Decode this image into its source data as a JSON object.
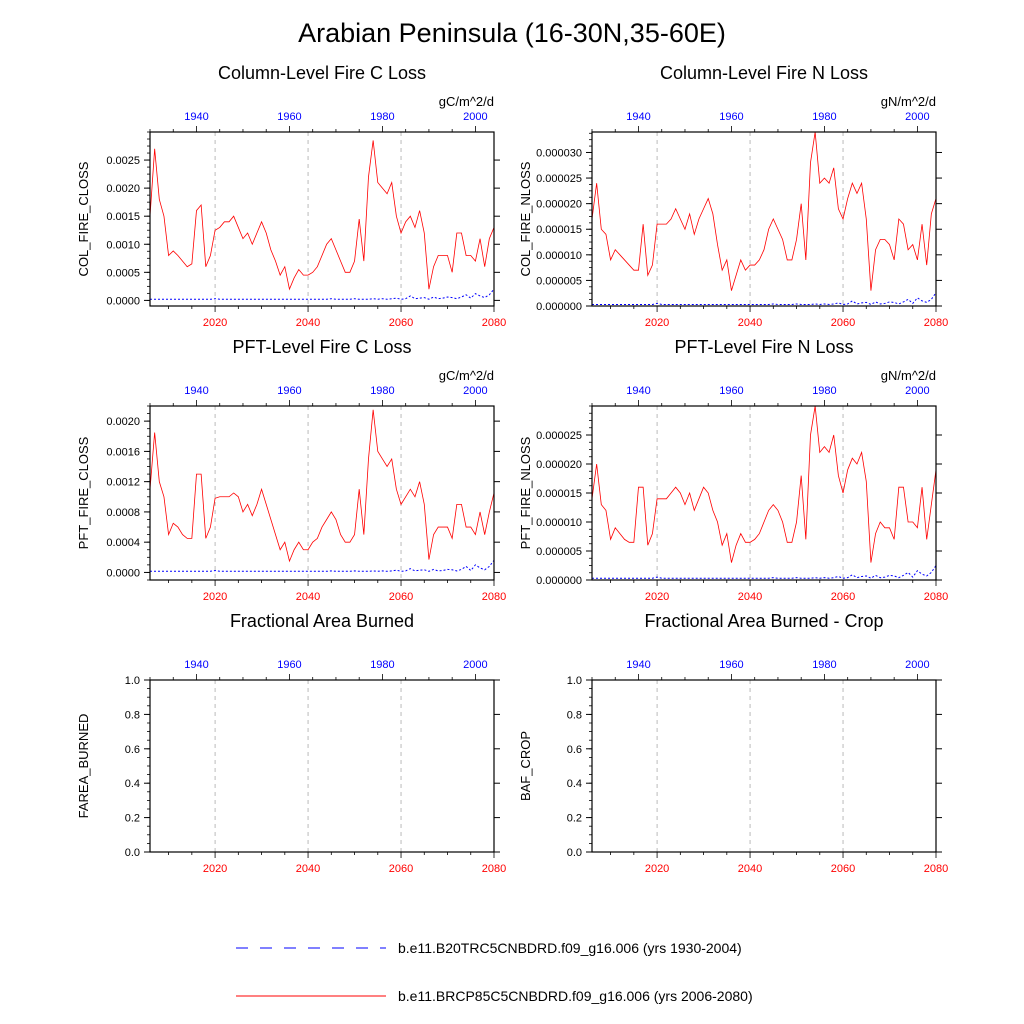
{
  "main_title": "Arabian Peninsula (16-30N,35-60E)",
  "colors": {
    "hist": "#0000ff",
    "future": "#ff0000",
    "gridline": "#aaaaaa"
  },
  "legend": {
    "hist_label": "b.e11.B20TRC5CNBDRD.f09_g16.006 (yrs 1930-2004)",
    "future_label": "b.e11.BRCP85C5CNBDRD.f09_g16.006 (yrs 2006-2080)"
  },
  "chart_data": [
    {
      "id": "col_c",
      "type": "line",
      "title": "Column-Level Fire C Loss",
      "ylabel": "COL_FIRE_CLOSS",
      "units": "gC/m^2/d",
      "ylim": [
        -0.0001,
        0.003
      ],
      "yticks": [
        "0.0000",
        "0.0005",
        "0.0010",
        "0.0015",
        "0.0020",
        "0.0025"
      ],
      "ytick_values": [
        0,
        0.0005,
        0.001,
        0.0015,
        0.002,
        0.0025
      ],
      "xlim_future": [
        2006,
        2080
      ],
      "xticks_future": [
        "2020",
        "2040",
        "2060",
        "2080"
      ],
      "xlim_hist": [
        1930,
        2004
      ],
      "xticks_hist": [
        "1940",
        "1960",
        "1980",
        "2000"
      ],
      "series": [
        {
          "name": "b.e11.BRCP85C5CNBDRD.f09_g16.006 (yrs 2006-2080)",
          "years_start": 2006,
          "values": [
            0.0015,
            0.0027,
            0.0018,
            0.0015,
            0.0008,
            0.00088,
            0.0008,
            0.0007,
            0.0006,
            0.00065,
            0.0016,
            0.0017,
            0.0006,
            0.0008,
            0.00125,
            0.0013,
            0.0014,
            0.0014,
            0.0015,
            0.0013,
            0.0011,
            0.0012,
            0.001,
            0.0012,
            0.0014,
            0.0012,
            0.0009,
            0.0007,
            0.00045,
            0.0006,
            0.0002,
            0.0004,
            0.00055,
            0.00045,
            0.00045,
            0.0005,
            0.0006,
            0.0008,
            0.001,
            0.0011,
            0.0009,
            0.0007,
            0.0005,
            0.0005,
            0.0007,
            0.00145,
            0.0007,
            0.0022,
            0.00285,
            0.0021,
            0.002,
            0.0019,
            0.0021,
            0.0015,
            0.0012,
            0.0014,
            0.0015,
            0.0013,
            0.0016,
            0.0012,
            0.0002,
            0.0006,
            0.0008,
            0.0008,
            0.0008,
            0.0005,
            0.0012,
            0.0012,
            0.0008,
            0.0008,
            0.0007,
            0.0011,
            0.0006,
            0.0011,
            0.0013
          ]
        },
        {
          "name": "b.e11.B20TRC5CNBDRD.f09_g16.006 (yrs 1930-2004)",
          "years_start": 1930,
          "values": [
            2e-05,
            2e-05,
            2e-05,
            2e-05,
            2e-05,
            2e-05,
            2e-05,
            2e-05,
            2e-05,
            2e-05,
            2e-05,
            2e-05,
            2e-05,
            2e-05,
            3e-05,
            2e-05,
            2e-05,
            2e-05,
            2e-05,
            2e-05,
            2e-05,
            2e-05,
            2e-05,
            2e-05,
            2e-05,
            2e-05,
            2e-05,
            2e-05,
            2e-05,
            2e-05,
            2e-05,
            2e-05,
            2e-05,
            2e-05,
            2e-05,
            2e-05,
            2e-05,
            2e-05,
            2e-05,
            3e-05,
            2e-05,
            2e-05,
            2e-05,
            2e-05,
            3e-05,
            2e-05,
            2e-05,
            2e-05,
            3e-05,
            2e-05,
            3e-05,
            2e-05,
            3e-05,
            4e-05,
            2e-05,
            3e-05,
            8e-05,
            3e-05,
            4e-05,
            5e-05,
            2e-05,
            6e-05,
            3e-05,
            4e-05,
            6e-05,
            5e-05,
            3e-05,
            6e-05,
            0.0001,
            4e-05,
            0.00012,
            8e-05,
            5e-05,
            0.0001,
            0.0002
          ]
        }
      ]
    },
    {
      "id": "col_n",
      "type": "line",
      "title": "Column-Level Fire N Loss",
      "ylabel": "COL_FIRE_NLOSS",
      "units": "gN/m^2/d",
      "ylim": [
        0,
        3.4e-05
      ],
      "yticks": [
        "0.000000",
        "0.000005",
        "0.000010",
        "0.000015",
        "0.000020",
        "0.000025",
        "0.000030"
      ],
      "ytick_values": [
        0,
        5e-06,
        1e-05,
        1.5e-05,
        2e-05,
        2.5e-05,
        3e-05
      ],
      "xlim_future": [
        2006,
        2080
      ],
      "xticks_future": [
        "2020",
        "2040",
        "2060",
        "2080"
      ],
      "xlim_hist": [
        1930,
        2004
      ],
      "xticks_hist": [
        "1940",
        "1960",
        "1980",
        "2000"
      ],
      "series": [
        {
          "name": "b.e11.BRCP85C5CNBDRD.f09_g16.006 (yrs 2006-2080)",
          "years_start": 2006,
          "values": [
            1.7e-05,
            2.4e-05,
            1.5e-05,
            1.4e-05,
            9e-06,
            1.1e-05,
            1e-05,
            9e-06,
            8e-06,
            7e-06,
            7e-06,
            1.6e-05,
            6e-06,
            8e-06,
            1.6e-05,
            1.6e-05,
            1.6e-05,
            1.7e-05,
            1.9e-05,
            1.7e-05,
            1.5e-05,
            1.8e-05,
            1.4e-05,
            1.7e-05,
            1.9e-05,
            2.1e-05,
            1.8e-05,
            1.2e-05,
            7e-06,
            9e-06,
            3e-06,
            6e-06,
            9e-06,
            7e-06,
            8e-06,
            8e-06,
            9e-06,
            1.1e-05,
            1.5e-05,
            1.7e-05,
            1.5e-05,
            1.3e-05,
            9e-06,
            9e-06,
            1.3e-05,
            2e-05,
            9e-06,
            2.8e-05,
            3.4e-05,
            2.4e-05,
            2.5e-05,
            2.4e-05,
            2.7e-05,
            1.9e-05,
            1.7e-05,
            2.1e-05,
            2.4e-05,
            2.2e-05,
            2.4e-05,
            1.7e-05,
            3e-06,
            1.1e-05,
            1.3e-05,
            1.3e-05,
            1.2e-05,
            9e-06,
            1.7e-05,
            1.6e-05,
            1.1e-05,
            1.2e-05,
            9e-06,
            1.6e-05,
            8e-06,
            1.8e-05,
            2.1e-05
          ]
        },
        {
          "name": "b.e11.B20TRC5CNBDRD.f09_g16.006 (yrs 1930-2004)",
          "years_start": 1930,
          "values": [
            3e-07,
            3e-07,
            3e-07,
            3e-07,
            3e-07,
            3e-07,
            3e-07,
            3e-07,
            3e-07,
            3e-07,
            3e-07,
            3e-07,
            3e-07,
            3e-07,
            5e-07,
            3e-07,
            3e-07,
            3e-07,
            3e-07,
            3e-07,
            3e-07,
            3e-07,
            3e-07,
            3e-07,
            3e-07,
            3e-07,
            3e-07,
            3e-07,
            3e-07,
            3e-07,
            3e-07,
            3e-07,
            3e-07,
            3e-07,
            3e-07,
            3e-07,
            3e-07,
            3e-07,
            3e-07,
            4e-07,
            3e-07,
            3e-07,
            3e-07,
            3e-07,
            4e-07,
            3e-07,
            3e-07,
            3e-07,
            4e-07,
            3e-07,
            4e-07,
            3e-07,
            4e-07,
            6e-07,
            3e-07,
            4e-07,
            1e-06,
            4e-07,
            6e-07,
            7e-07,
            3e-07,
            8e-07,
            4e-07,
            5e-07,
            8e-07,
            7e-07,
            4e-07,
            8e-07,
            1.3e-06,
            5e-07,
            1.6e-06,
            1e-06,
            7e-07,
            1.3e-06,
            2.6e-06
          ]
        }
      ]
    },
    {
      "id": "pft_c",
      "type": "line",
      "title": "PFT-Level Fire C Loss",
      "ylabel": "PFT_FIRE_CLOSS",
      "units": "gC/m^2/d",
      "ylim": [
        -0.0001,
        0.0022
      ],
      "yticks": [
        "0.0000",
        "0.0004",
        "0.0008",
        "0.0012",
        "0.0016",
        "0.0020"
      ],
      "ytick_values": [
        0,
        0.0004,
        0.0008,
        0.0012,
        0.0016,
        0.002
      ],
      "xlim_future": [
        2006,
        2080
      ],
      "xticks_future": [
        "2020",
        "2040",
        "2060",
        "2080"
      ],
      "xlim_hist": [
        1930,
        2004
      ],
      "xticks_hist": [
        "1940",
        "1960",
        "1980",
        "2000"
      ],
      "series": [
        {
          "name": "b.e11.BRCP85C5CNBDRD.f09_g16.006 (yrs 2006-2080)",
          "years_start": 2006,
          "values": [
            0.0011,
            0.00185,
            0.0012,
            0.001,
            0.0005,
            0.00065,
            0.0006,
            0.0005,
            0.00045,
            0.00045,
            0.0013,
            0.0013,
            0.00045,
            0.0006,
            0.00098,
            0.001,
            0.001,
            0.001,
            0.00105,
            0.001,
            0.0008,
            0.0009,
            0.00075,
            0.0009,
            0.0011,
            0.0009,
            0.0007,
            0.0005,
            0.0003,
            0.0004,
            0.00015,
            0.0003,
            0.0004,
            0.0003,
            0.0003,
            0.0004,
            0.00045,
            0.0006,
            0.0007,
            0.0008,
            0.0007,
            0.0005,
            0.0004,
            0.0004,
            0.0005,
            0.0011,
            0.0005,
            0.0015,
            0.00215,
            0.0016,
            0.0015,
            0.0014,
            0.0015,
            0.0011,
            0.0009,
            0.001,
            0.0011,
            0.001,
            0.0012,
            0.0009,
            0.00017,
            0.0005,
            0.0006,
            0.0006,
            0.0006,
            0.00045,
            0.0009,
            0.0009,
            0.0006,
            0.0006,
            0.0005,
            0.0008,
            0.0005,
            0.0008,
            0.00105
          ]
        },
        {
          "name": "b.e11.B20TRC5CNBDRD.f09_g16.006 (yrs 1930-2004)",
          "years_start": 1930,
          "values": [
            1.5e-05,
            1.5e-05,
            1.5e-05,
            1.5e-05,
            1.5e-05,
            1.5e-05,
            1.5e-05,
            1.5e-05,
            1.5e-05,
            1.5e-05,
            1.5e-05,
            1.5e-05,
            1.5e-05,
            1.5e-05,
            2.5e-05,
            1.5e-05,
            1.5e-05,
            1.5e-05,
            1.5e-05,
            1.5e-05,
            1.5e-05,
            1.5e-05,
            1.5e-05,
            1.5e-05,
            1.5e-05,
            1.5e-05,
            1.5e-05,
            1.5e-05,
            1.5e-05,
            1.5e-05,
            1.5e-05,
            1.5e-05,
            1.5e-05,
            1.5e-05,
            1.5e-05,
            1.5e-05,
            1.5e-05,
            1.5e-05,
            1.5e-05,
            2e-05,
            1.5e-05,
            1.5e-05,
            1.5e-05,
            1.5e-05,
            2e-05,
            1.5e-05,
            1.5e-05,
            1.5e-05,
            2e-05,
            1.5e-05,
            2e-05,
            1.5e-05,
            2e-05,
            3e-05,
            1.5e-05,
            2e-05,
            5e-05,
            2e-05,
            3e-05,
            3.5e-05,
            1.5e-05,
            4e-05,
            2e-05,
            2.5e-05,
            4e-05,
            3.5e-05,
            2e-05,
            4e-05,
            8e-05,
            2.5e-05,
            0.0001,
            6e-05,
            3.5e-05,
            8e-05,
            0.00016
          ]
        }
      ]
    },
    {
      "id": "pft_n",
      "type": "line",
      "title": "PFT-Level Fire N Loss",
      "ylabel": "PFT_FIRE_NLOSS",
      "units": "gN/m^2/d",
      "ylim": [
        0,
        3e-05
      ],
      "yticks": [
        "0.000000",
        "0.000005",
        "0.000010",
        "0.000015",
        "0.000020",
        "0.000025"
      ],
      "ytick_values": [
        0,
        5e-06,
        1e-05,
        1.5e-05,
        2e-05,
        2.5e-05
      ],
      "xlim_future": [
        2006,
        2080
      ],
      "xticks_future": [
        "2020",
        "2040",
        "2060",
        "2080"
      ],
      "xlim_hist": [
        1930,
        2004
      ],
      "xticks_hist": [
        "1940",
        "1960",
        "1980",
        "2000"
      ],
      "series": [
        {
          "name": "b.e11.BRCP85C5CNBDRD.f09_g16.006 (yrs 2006-2080)",
          "years_start": 2006,
          "values": [
            1.4e-05,
            2e-05,
            1.3e-05,
            1.2e-05,
            7e-06,
            9e-06,
            8e-06,
            7e-06,
            6.5e-06,
            6.5e-06,
            1.6e-05,
            1.6e-05,
            6e-06,
            8e-06,
            1.4e-05,
            1.4e-05,
            1.4e-05,
            1.5e-05,
            1.6e-05,
            1.5e-05,
            1.3e-05,
            1.5e-05,
            1.2e-05,
            1.4e-05,
            1.6e-05,
            1.5e-05,
            1.2e-05,
            1e-05,
            6e-06,
            8e-06,
            3e-06,
            6e-06,
            8e-06,
            6.5e-06,
            6.5e-06,
            7e-06,
            8e-06,
            1e-05,
            1.2e-05,
            1.3e-05,
            1.2e-05,
            1e-05,
            6.5e-06,
            6.5e-06,
            1e-05,
            1.8e-05,
            7e-06,
            2.5e-05,
            3e-05,
            2.2e-05,
            2.3e-05,
            2.2e-05,
            2.5e-05,
            1.8e-05,
            1.5e-05,
            1.9e-05,
            2.1e-05,
            2e-05,
            2.2e-05,
            1.7e-05,
            3e-06,
            8e-06,
            1e-05,
            9e-06,
            9e-06,
            7e-06,
            1.6e-05,
            1.6e-05,
            1e-05,
            1e-05,
            9e-06,
            1.6e-05,
            7e-06,
            1.3e-05,
            1.9e-05
          ]
        },
        {
          "name": "b.e11.B20TRC5CNBDRD.f09_g16.006 (yrs 1930-2004)",
          "years_start": 1930,
          "values": [
            3e-07,
            3e-07,
            3e-07,
            3e-07,
            3e-07,
            3e-07,
            3e-07,
            3e-07,
            3e-07,
            3e-07,
            3e-07,
            3e-07,
            3e-07,
            3e-07,
            5e-07,
            3e-07,
            3e-07,
            3e-07,
            3e-07,
            3e-07,
            3e-07,
            3e-07,
            3e-07,
            3e-07,
            3e-07,
            3e-07,
            3e-07,
            3e-07,
            3e-07,
            3e-07,
            3e-07,
            3e-07,
            3e-07,
            3e-07,
            3e-07,
            3e-07,
            3e-07,
            3e-07,
            3e-07,
            4e-07,
            3e-07,
            3e-07,
            3e-07,
            3e-07,
            4e-07,
            3e-07,
            3e-07,
            3e-07,
            4e-07,
            3e-07,
            4e-07,
            3e-07,
            4e-07,
            6e-07,
            3e-07,
            4e-07,
            9e-07,
            4e-07,
            6e-07,
            7e-07,
            3e-07,
            8e-07,
            4e-07,
            5e-07,
            8e-07,
            7e-07,
            4e-07,
            8e-07,
            1.3e-06,
            5e-07,
            1.6e-06,
            1e-06,
            7e-07,
            1.3e-06,
            2.5e-06
          ]
        }
      ]
    },
    {
      "id": "farea",
      "type": "line",
      "title": "Fractional Area Burned",
      "ylabel": "FAREA_BURNED",
      "units": "",
      "ylim": [
        0,
        1
      ],
      "yticks": [
        "0.0",
        "0.2",
        "0.4",
        "0.6",
        "0.8",
        "1.0"
      ],
      "ytick_values": [
        0,
        0.2,
        0.4,
        0.6,
        0.8,
        1.0
      ],
      "xlim_future": [
        2006,
        2080
      ],
      "xticks_future": [
        "2020",
        "2040",
        "2060",
        "2080"
      ],
      "xlim_hist": [
        1930,
        2004
      ],
      "xticks_hist": [
        "1940",
        "1960",
        "1980",
        "2000"
      ],
      "series": []
    },
    {
      "id": "baf_crop",
      "type": "line",
      "title": "Fractional Area Burned - Crop",
      "ylabel": "BAF_CROP",
      "units": "",
      "ylim": [
        0,
        1
      ],
      "yticks": [
        "0.0",
        "0.2",
        "0.4",
        "0.6",
        "0.8",
        "1.0"
      ],
      "ytick_values": [
        0,
        0.2,
        0.4,
        0.6,
        0.8,
        1.0
      ],
      "xlim_future": [
        2006,
        2080
      ],
      "xticks_future": [
        "2020",
        "2040",
        "2060",
        "2080"
      ],
      "xlim_hist": [
        1930,
        2004
      ],
      "xticks_hist": [
        "1940",
        "1960",
        "1980",
        "2000"
      ],
      "series": []
    }
  ]
}
